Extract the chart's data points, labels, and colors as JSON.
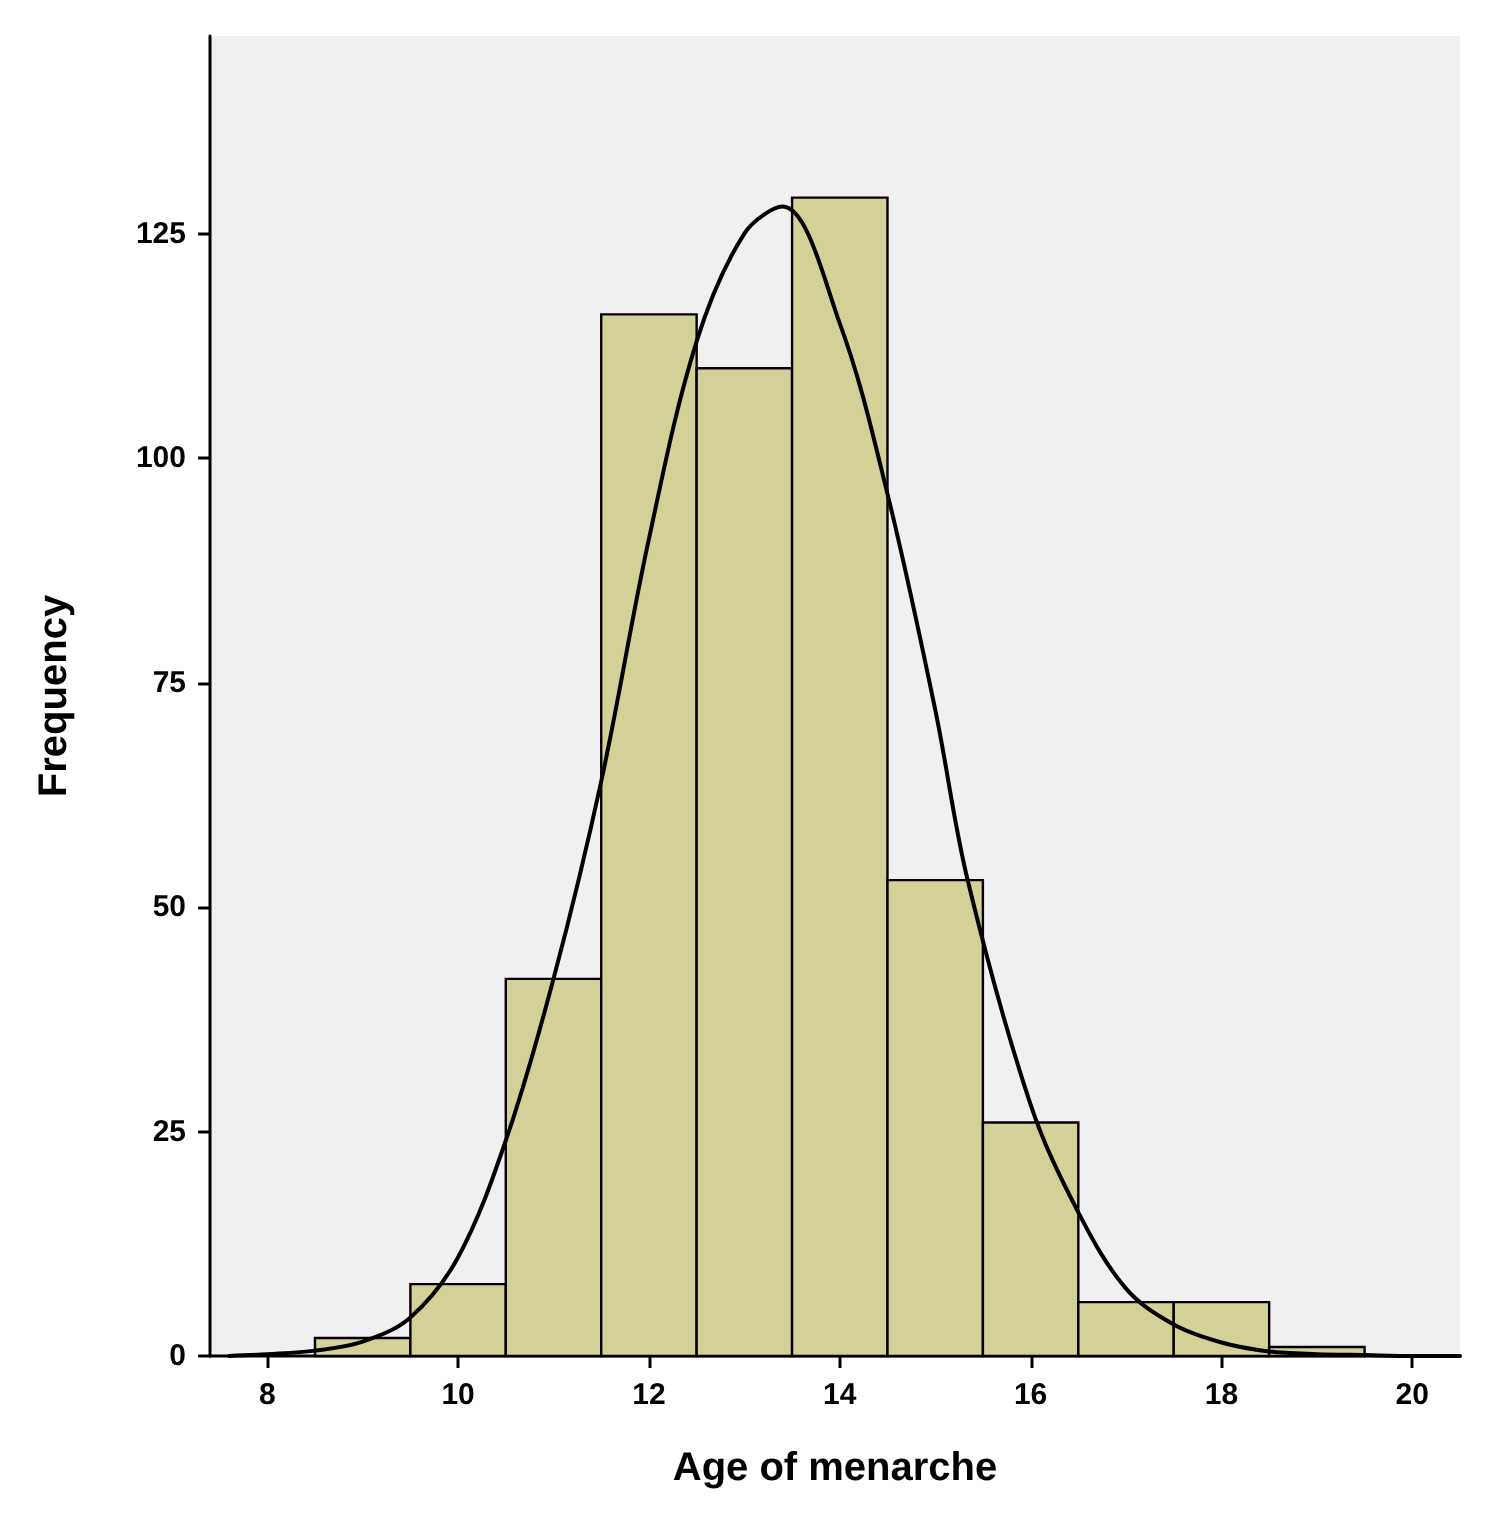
{
  "chart_data": {
    "type": "histogram",
    "xlabel": "Age of menarche",
    "ylabel": "Frequency",
    "bins": [
      8.5,
      9.5,
      10.5,
      11.5,
      12.5,
      13.5,
      14.5,
      15.5,
      16.5,
      17.5,
      18.5,
      19.5
    ],
    "values": [
      2,
      8,
      42,
      116,
      110,
      129,
      53,
      26,
      6,
      6,
      1
    ],
    "color": "#d3d098",
    "series": [
      {
        "type": "line",
        "color": "#000000",
        "x": [
          7.6,
          8,
          8.5,
          9,
          9.5,
          10,
          10.5,
          11,
          11.5,
          12,
          12.5,
          13,
          13.4,
          14,
          14.5,
          15,
          15.34,
          16,
          16.5,
          17,
          17.5,
          18,
          18.5,
          19,
          19.5,
          20,
          20.5
        ],
        "values": [
          0,
          0.2,
          0.6,
          1.6,
          4.3,
          11,
          24,
          42,
          64,
          91,
          113,
          125,
          128,
          115,
          96,
          72,
          53,
          28,
          16,
          7.5,
          3.5,
          1.5,
          0.5,
          0.2,
          0.1,
          0,
          0
        ]
      }
    ],
    "xlim": [
      7.4,
      20.5
    ],
    "xticks": [
      8,
      10,
      12,
      14,
      16,
      18,
      20
    ],
    "ylim": [
      0,
      147
    ],
    "yticks": [
      0,
      25,
      50,
      75,
      100,
      125
    ],
    "grid": false,
    "marker": "none",
    "line_style": "solid"
  }
}
